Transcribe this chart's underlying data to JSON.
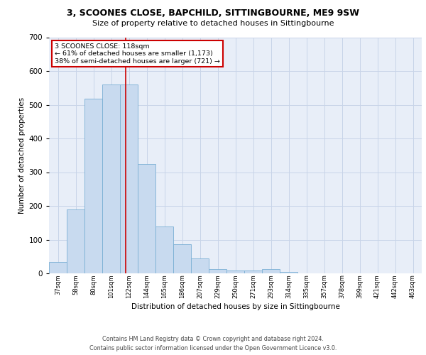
{
  "title_line1": "3, SCOONES CLOSE, BAPCHILD, SITTINGBOURNE, ME9 9SW",
  "title_line2": "Size of property relative to detached houses in Sittingbourne",
  "xlabel": "Distribution of detached houses by size in Sittingbourne",
  "ylabel": "Number of detached properties",
  "categories": [
    "37sqm",
    "58sqm",
    "80sqm",
    "101sqm",
    "122sqm",
    "144sqm",
    "165sqm",
    "186sqm",
    "207sqm",
    "229sqm",
    "250sqm",
    "271sqm",
    "293sqm",
    "314sqm",
    "335sqm",
    "357sqm",
    "378sqm",
    "399sqm",
    "421sqm",
    "442sqm",
    "463sqm"
  ],
  "values": [
    33,
    190,
    518,
    560,
    560,
    325,
    140,
    87,
    45,
    13,
    8,
    8,
    12,
    5,
    0,
    0,
    0,
    0,
    0,
    0,
    0
  ],
  "bar_color": "#c8daef",
  "bar_edge_color": "#7aafd4",
  "vline_color": "#cc0000",
  "annotation_text_line1": "3 SCOONES CLOSE: 118sqm",
  "annotation_text_line2": "← 61% of detached houses are smaller (1,173)",
  "annotation_text_line3": "38% of semi-detached houses are larger (721) →",
  "annotation_box_facecolor": "#ffffff",
  "annotation_box_edgecolor": "#cc0000",
  "grid_color": "#c8d4e8",
  "background_color": "#e8eef8",
  "ylim": [
    0,
    700
  ],
  "yticks": [
    0,
    100,
    200,
    300,
    400,
    500,
    600,
    700
  ],
  "footer_line1": "Contains HM Land Registry data © Crown copyright and database right 2024.",
  "footer_line2": "Contains public sector information licensed under the Open Government Licence v3.0."
}
